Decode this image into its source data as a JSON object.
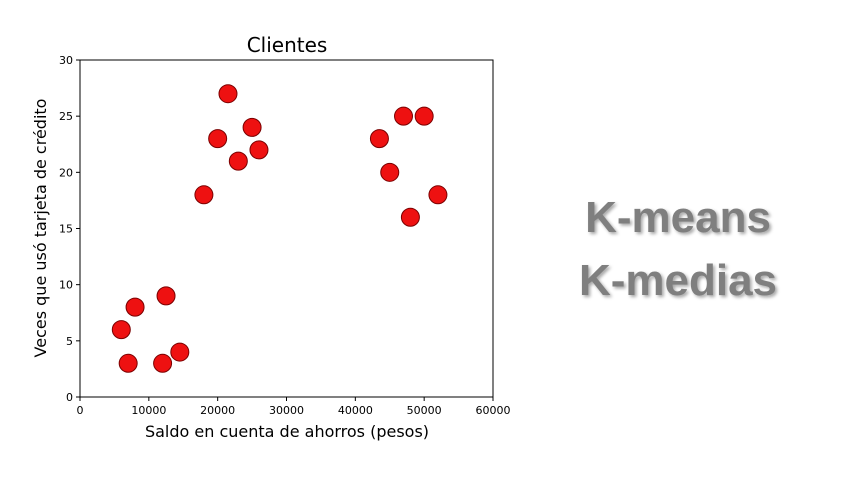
{
  "chart_data": {
    "type": "scatter",
    "title": "Clientes",
    "xlabel": "Saldo en cuenta de ahorros (pesos)",
    "ylabel": "Veces que usó tarjeta de crédito",
    "xlim": [
      0,
      60000
    ],
    "ylim": [
      0,
      30
    ],
    "xticks": [
      0,
      10000,
      20000,
      30000,
      40000,
      50000,
      60000
    ],
    "yticks": [
      0,
      5,
      10,
      15,
      20,
      25,
      30
    ],
    "grid": false,
    "marker_color": "#ee1111",
    "marker_edge": "#7a0000",
    "points": [
      {
        "x": 6000,
        "y": 6
      },
      {
        "x": 7000,
        "y": 3
      },
      {
        "x": 8000,
        "y": 8
      },
      {
        "x": 12000,
        "y": 3
      },
      {
        "x": 12500,
        "y": 9
      },
      {
        "x": 14500,
        "y": 4
      },
      {
        "x": 18000,
        "y": 18
      },
      {
        "x": 20000,
        "y": 23
      },
      {
        "x": 21500,
        "y": 27
      },
      {
        "x": 23000,
        "y": 21
      },
      {
        "x": 25000,
        "y": 24
      },
      {
        "x": 26000,
        "y": 22
      },
      {
        "x": 43500,
        "y": 23
      },
      {
        "x": 45000,
        "y": 20
      },
      {
        "x": 47000,
        "y": 25
      },
      {
        "x": 48000,
        "y": 16
      },
      {
        "x": 50000,
        "y": 25
      },
      {
        "x": 52000,
        "y": 18
      }
    ]
  },
  "side_labels": {
    "line1": "K-means",
    "line2": "K-medias"
  }
}
